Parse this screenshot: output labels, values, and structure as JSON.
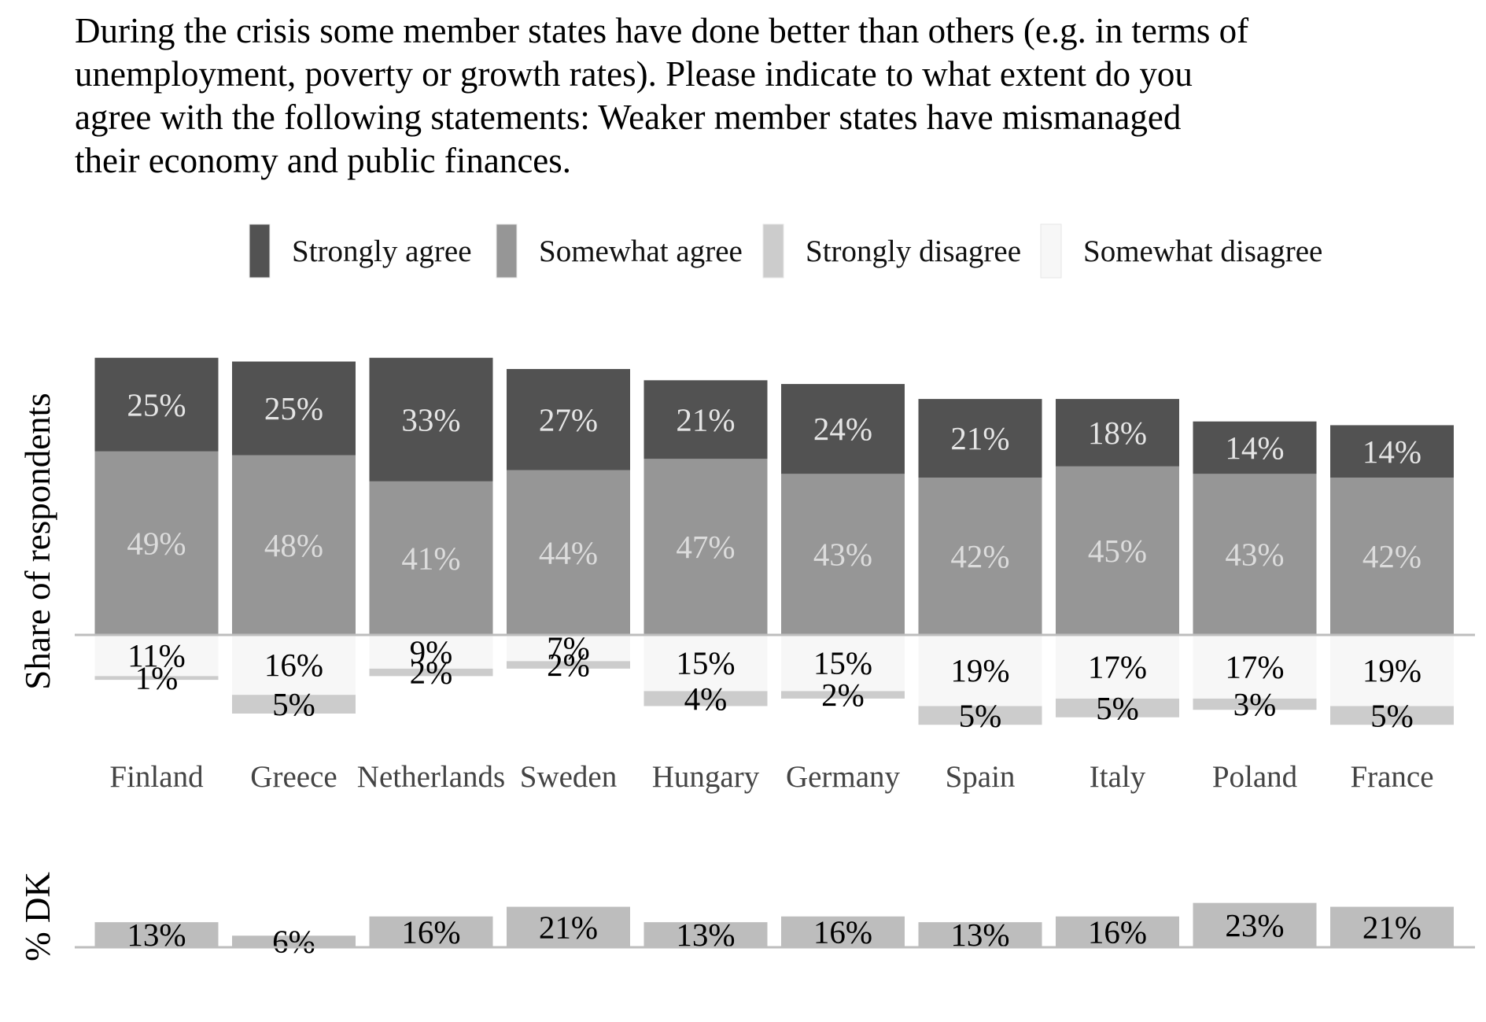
{
  "chart_data": {
    "type": "bar",
    "title_lines": [
      "During the crisis some member states have done better than others (e.g. in terms of",
      "unemployment, poverty or growth rates). Please indicate to what extent do you",
      "agree with the following statements: Weaker member states have mismanaged",
      "their economy and public finances."
    ],
    "ylabel": "Share of respondents",
    "dk_label": "% DK",
    "legend": {
      "placement": "top-center",
      "entries": [
        {
          "key": "strongly_agree",
          "label": "Strongly agree"
        },
        {
          "key": "somewhat_agree",
          "label": "Somewhat agree"
        },
        {
          "key": "strongly_disagree",
          "label": "Strongly disagree"
        },
        {
          "key": "somewhat_disagree",
          "label": "Somewhat disagree"
        }
      ]
    },
    "colors": {
      "strongly_agree": "#525252",
      "somewhat_agree": "#969696",
      "strongly_disagree": "#cccccc",
      "somewhat_disagree": "#f7f7f7",
      "dk": "#bdbdbd",
      "axis_line": "#bdbdbd",
      "agree_label_strong": "#e5e5e5",
      "agree_label_somewhat": "#dcdcdc",
      "category_label": "#444444"
    },
    "categories": [
      "Finland",
      "Greece",
      "Netherlands",
      "Sweden",
      "Hungary",
      "Germany",
      "Spain",
      "Italy",
      "Poland",
      "France"
    ],
    "series": [
      {
        "name": "Strongly agree",
        "key": "strongly_agree",
        "values": [
          25,
          25,
          33,
          27,
          21,
          24,
          21,
          18,
          14,
          14
        ]
      },
      {
        "name": "Somewhat agree",
        "key": "somewhat_agree",
        "values": [
          49,
          48,
          41,
          44,
          47,
          43,
          42,
          45,
          43,
          42
        ]
      },
      {
        "name": "Somewhat disagree",
        "key": "somewhat_disagree",
        "values": [
          11,
          16,
          9,
          7,
          15,
          15,
          19,
          17,
          17,
          19
        ]
      },
      {
        "name": "Strongly disagree",
        "key": "strongly_disagree",
        "values": [
          1,
          5,
          2,
          2,
          4,
          2,
          5,
          5,
          3,
          5
        ]
      }
    ],
    "dk": {
      "values": [
        13,
        6,
        16,
        21,
        13,
        16,
        13,
        16,
        23,
        21
      ]
    },
    "grid": false,
    "label_suffix": "%"
  }
}
